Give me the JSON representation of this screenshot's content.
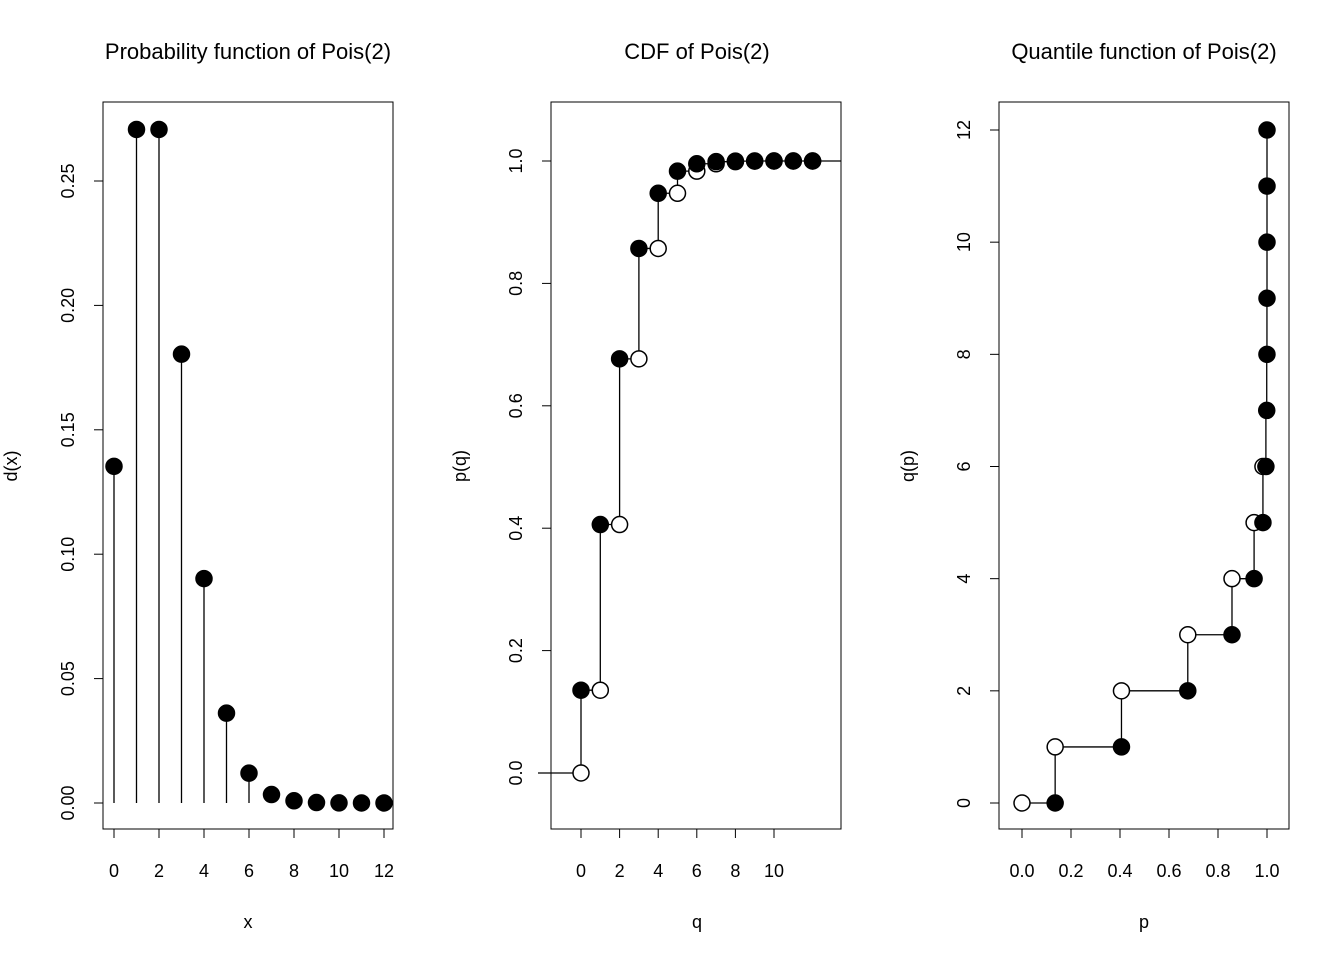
{
  "chart_data": [
    {
      "type": "scatter",
      "subtype": "stem",
      "title": "Probability function of Pois(2)",
      "xlabel": "x",
      "ylabel": "d(x)",
      "xlim": [
        0,
        12
      ],
      "ylim": [
        0,
        0.27
      ],
      "xticks": [
        "0",
        "2",
        "4",
        "6",
        "8",
        "10",
        "12"
      ],
      "yticks": [
        "0.00",
        "0.05",
        "0.10",
        "0.15",
        "0.20",
        "0.25"
      ],
      "x": [
        0,
        1,
        2,
        3,
        4,
        5,
        6,
        7,
        8,
        9,
        10,
        11,
        12
      ],
      "y": [
        0.1353,
        0.2707,
        0.2707,
        0.1804,
        0.0902,
        0.0361,
        0.012,
        0.0034,
        0.0009,
        0.0002,
        4e-05,
        7e-06,
        1e-06
      ]
    },
    {
      "type": "line",
      "subtype": "step",
      "title": "CDF of Pois(2)",
      "xlabel": "q",
      "ylabel": "p(q)",
      "xlim": [
        -1,
        12.5
      ],
      "ylim": [
        -0.05,
        1.05
      ],
      "xticks": [
        "0",
        "2",
        "4",
        "6",
        "8",
        "10"
      ],
      "yticks": [
        "0.0",
        "0.2",
        "0.4",
        "0.6",
        "0.8",
        "1.0"
      ],
      "x": [
        0,
        1,
        2,
        3,
        4,
        5,
        6,
        7,
        8,
        9,
        10,
        11,
        12
      ],
      "y": [
        0.1353,
        0.406,
        0.6767,
        0.8571,
        0.9473,
        0.9834,
        0.9955,
        0.9989,
        0.9998,
        1.0,
        1.0,
        1.0,
        1.0
      ]
    },
    {
      "type": "line",
      "subtype": "step",
      "title": "Quantile function of Pois(2)",
      "xlabel": "p",
      "ylabel": "q(p)",
      "xlim": [
        0,
        1
      ],
      "ylim": [
        0,
        12
      ],
      "xticks": [
        "0.0",
        "0.2",
        "0.4",
        "0.6",
        "0.8",
        "1.0"
      ],
      "yticks": [
        "0",
        "2",
        "4",
        "6",
        "8",
        "10",
        "12"
      ],
      "p": [
        0.1353,
        0.406,
        0.6767,
        0.8571,
        0.9473,
        0.9834,
        0.9955,
        0.9989,
        0.9998,
        1.0,
        1.0,
        1.0,
        1.0
      ],
      "q": [
        0,
        1,
        2,
        3,
        4,
        5,
        6,
        7,
        8,
        9,
        10,
        11,
        12
      ]
    }
  ]
}
